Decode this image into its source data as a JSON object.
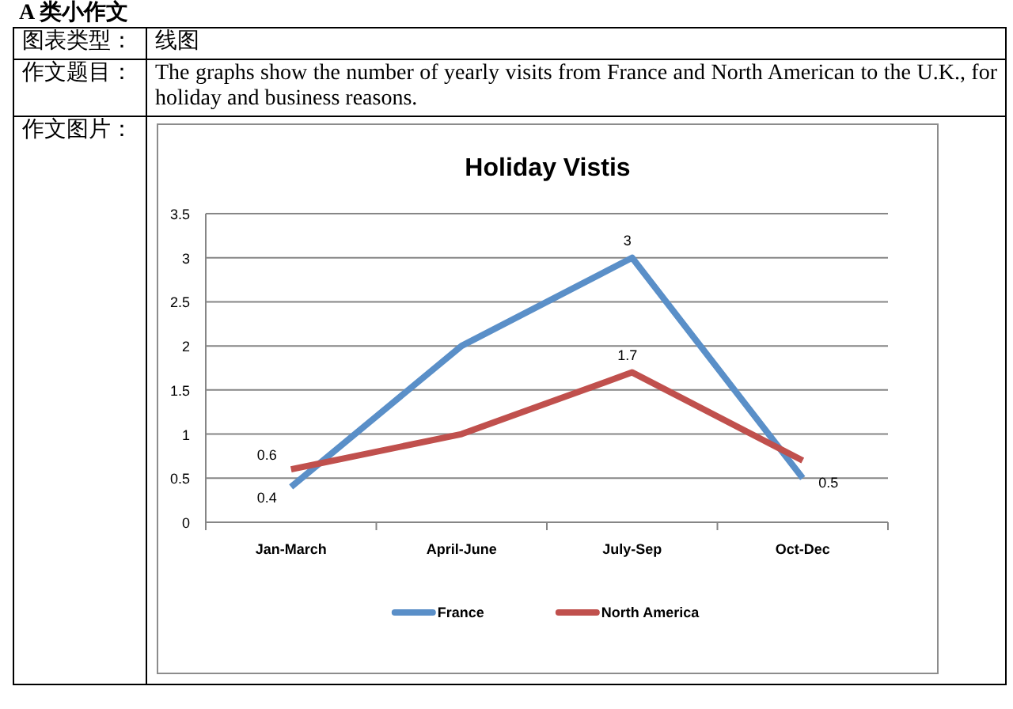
{
  "chart_data": {
    "type": "line",
    "title": "Holiday Vistis",
    "categories": [
      "Jan-March",
      "April-June",
      "July-Sep",
      "Oct-Dec"
    ],
    "series": [
      {
        "name": "France",
        "color": "#5a8fc8",
        "values": [
          0.4,
          2,
          3,
          0.5
        ],
        "value_labels": [
          "0.4",
          null,
          "3",
          "0.5"
        ]
      },
      {
        "name": "North America",
        "color": "#c0504d",
        "values": [
          0.6,
          1,
          1.7,
          0.7
        ],
        "value_labels": [
          "0.6",
          null,
          "1.7",
          null
        ]
      }
    ],
    "ylim": [
      0,
      3.5
    ],
    "yticks": [
      0,
      0.5,
      1,
      1.5,
      2,
      2.5,
      3,
      3.5
    ],
    "grid": "y",
    "legend": "bottom",
    "line_style": "solid",
    "annotations": [
      "A 类小作文",
      "图表类型：",
      "线图",
      "作文题目：",
      "The graphs show the number of yearly visits from France and North American to the U.K., for holiday and business reasons.",
      "作文图片："
    ]
  }
}
